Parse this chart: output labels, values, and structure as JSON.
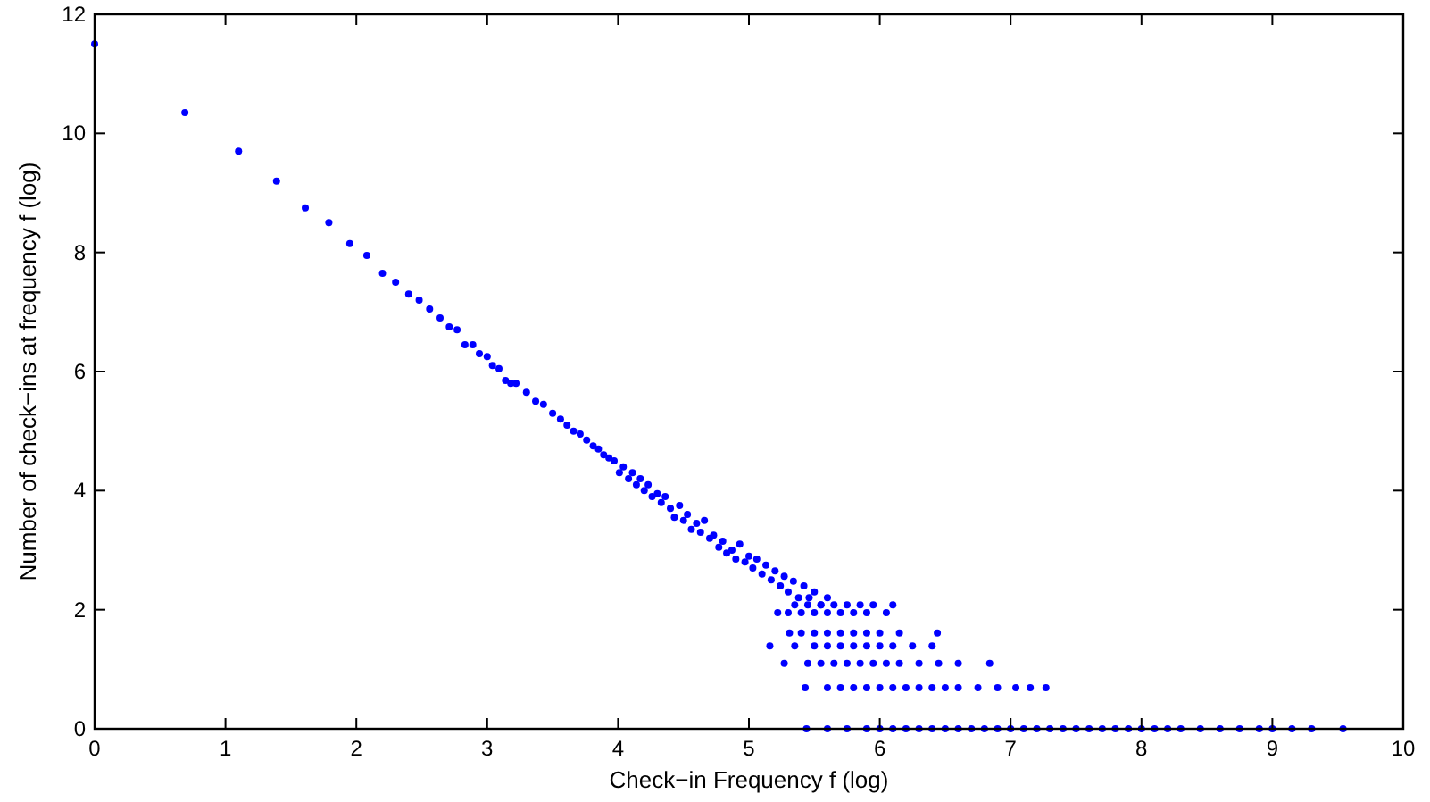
{
  "chart_data": {
    "type": "scatter",
    "xlabel": "Check−in Frequency f (log)",
    "ylabel": "Number of check−ins at frequency f (log)",
    "xlim": [
      0,
      10
    ],
    "ylim": [
      0,
      12
    ],
    "xticks": [
      0,
      1,
      2,
      3,
      4,
      5,
      6,
      7,
      8,
      9,
      10
    ],
    "yticks": [
      0,
      2,
      4,
      6,
      8,
      10,
      12
    ],
    "grid": false,
    "marker": "circle",
    "series": [
      {
        "color": "#0000ff",
        "x": [
          0,
          0.69,
          1.1,
          1.39,
          1.61,
          1.79,
          1.95,
          2.08,
          2.2,
          2.3,
          2.4,
          2.48,
          2.56,
          2.64,
          2.71,
          2.77,
          2.83,
          2.89,
          2.94,
          3.0,
          3.04,
          3.09,
          3.14,
          3.18,
          3.22,
          3.3,
          3.37,
          3.43,
          3.5,
          3.56,
          3.61,
          3.66,
          3.71,
          3.76,
          3.81,
          3.85,
          3.89,
          3.93,
          3.97,
          4.01,
          4.04,
          4.08,
          4.11,
          4.14,
          4.17,
          4.2,
          4.23,
          4.26,
          4.3,
          4.33,
          4.36,
          4.4,
          4.43,
          4.47,
          4.5,
          4.53,
          4.56,
          4.6,
          4.63,
          4.66,
          4.7,
          4.73,
          4.77,
          4.8,
          4.83,
          4.87,
          4.9,
          4.93,
          4.97,
          5.0,
          5.03,
          5.06,
          5.1,
          5.13,
          5.17,
          5.2,
          5.24,
          5.27,
          5.3,
          5.34,
          5.38,
          5.42,
          5.46,
          5.5,
          5.55,
          5.6
        ],
        "values": [
          11.5,
          10.35,
          9.7,
          9.2,
          8.75,
          8.5,
          8.15,
          7.95,
          7.65,
          7.5,
          7.3,
          7.2,
          7.05,
          6.9,
          6.75,
          6.7,
          6.45,
          6.45,
          6.3,
          6.25,
          6.1,
          6.05,
          5.85,
          5.8,
          5.8,
          5.65,
          5.5,
          5.45,
          5.3,
          5.2,
          5.1,
          5.0,
          4.95,
          4.85,
          4.75,
          4.7,
          4.6,
          4.55,
          4.5,
          4.3,
          4.4,
          4.2,
          4.3,
          4.1,
          4.2,
          4.0,
          4.1,
          3.9,
          3.95,
          3.8,
          3.9,
          3.7,
          3.55,
          3.75,
          3.5,
          3.6,
          3.35,
          3.45,
          3.3,
          3.5,
          3.2,
          3.25,
          3.05,
          3.15,
          2.95,
          3.0,
          2.85,
          3.1,
          2.8,
          2.9,
          2.7,
          2.85,
          2.6,
          2.75,
          2.5,
          2.65,
          2.4,
          2.56,
          2.3,
          2.48,
          2.2,
          2.4,
          2.2,
          2.3,
          2.08,
          2.2
        ]
      },
      {
        "color": "#0000ff",
        "x": [
          5.35,
          5.45,
          5.55,
          5.65,
          5.75,
          5.85,
          5.95,
          6.1,
          5.22,
          5.3,
          5.4,
          5.5,
          5.6,
          5.7,
          5.8,
          5.9,
          6.05,
          5.31,
          5.4,
          5.5,
          5.6,
          5.7,
          5.8,
          5.9,
          6.0,
          6.15,
          6.44,
          5.16,
          5.35,
          5.5,
          5.6,
          5.7,
          5.8,
          5.9,
          6.0,
          6.1,
          6.25,
          6.4,
          5.27,
          5.45,
          5.55,
          5.65,
          5.75,
          5.85,
          5.95,
          6.05,
          6.15,
          6.3,
          6.45,
          6.6,
          6.84,
          5.43,
          5.6,
          5.7,
          5.8,
          5.9,
          6.0,
          6.1,
          6.2,
          6.3,
          6.4,
          6.5,
          6.6,
          6.75,
          6.9,
          7.04,
          7.15,
          7.27
        ],
        "values": [
          2.08,
          2.08,
          2.08,
          2.08,
          2.08,
          2.08,
          2.08,
          2.08,
          1.95,
          1.95,
          1.95,
          1.95,
          1.95,
          1.95,
          1.95,
          1.95,
          1.95,
          1.61,
          1.61,
          1.61,
          1.61,
          1.61,
          1.61,
          1.61,
          1.61,
          1.61,
          1.61,
          1.39,
          1.39,
          1.39,
          1.39,
          1.39,
          1.39,
          1.39,
          1.39,
          1.39,
          1.39,
          1.39,
          1.1,
          1.1,
          1.1,
          1.1,
          1.1,
          1.1,
          1.1,
          1.1,
          1.1,
          1.1,
          1.1,
          1.1,
          1.1,
          0.69,
          0.69,
          0.69,
          0.69,
          0.69,
          0.69,
          0.69,
          0.69,
          0.69,
          0.69,
          0.69,
          0.69,
          0.69,
          0.69,
          0.69,
          0.69,
          0.69
        ]
      },
      {
        "color": "#0000ff",
        "x": [
          5.44,
          5.6,
          5.75,
          5.9,
          6.0,
          6.1,
          6.2,
          6.3,
          6.4,
          6.5,
          6.6,
          6.7,
          6.8,
          6.9,
          7.0,
          7.1,
          7.2,
          7.3,
          7.4,
          7.5,
          7.6,
          7.7,
          7.8,
          7.9,
          8.0,
          8.1,
          8.2,
          8.3,
          8.45,
          8.6,
          8.75,
          8.9,
          9.0,
          9.15,
          9.3,
          9.54
        ],
        "values": [
          0,
          0,
          0,
          0,
          0,
          0,
          0,
          0,
          0,
          0,
          0,
          0,
          0,
          0,
          0,
          0,
          0,
          0,
          0,
          0,
          0,
          0,
          0,
          0,
          0,
          0,
          0,
          0,
          0,
          0,
          0,
          0,
          0,
          0,
          0,
          0
        ]
      }
    ]
  }
}
